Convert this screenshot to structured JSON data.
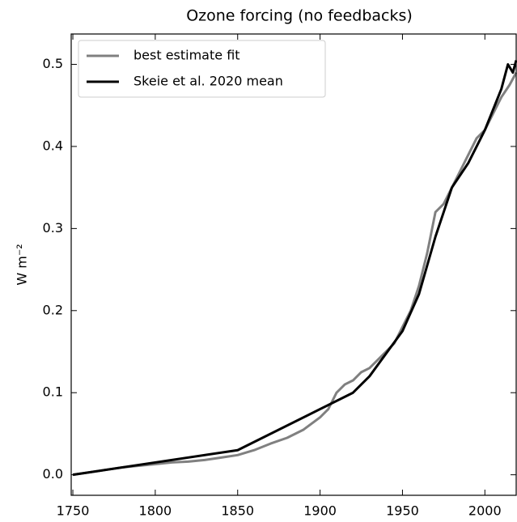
{
  "chart_data": {
    "type": "line",
    "title": "Ozone forcing (no feedbacks)",
    "ylabel": "W m⁻²",
    "xlim": [
      1749,
      2019
    ],
    "ylim": [
      -0.025,
      0.537
    ],
    "xticks": [
      1750,
      1800,
      1850,
      1900,
      1950,
      2000
    ],
    "yticks": [
      {
        "value": 0,
        "label": "0.0"
      },
      {
        "value": 0.1,
        "label": "0.1"
      },
      {
        "value": 0.2,
        "label": "0.2"
      },
      {
        "value": 0.3,
        "label": "0.3"
      },
      {
        "value": 0.4,
        "label": "0.4"
      },
      {
        "value": 0.5,
        "label": "0.5"
      }
    ],
    "legend": "upper left",
    "series": [
      {
        "name": "best estimate fit",
        "color": "#808080",
        "x": [
          1750,
          1760,
          1770,
          1780,
          1790,
          1800,
          1810,
          1820,
          1830,
          1840,
          1850,
          1860,
          1870,
          1880,
          1890,
          1900,
          1905,
          1910,
          1915,
          1920,
          1925,
          1930,
          1935,
          1940,
          1945,
          1950,
          1955,
          1960,
          1965,
          1970,
          1975,
          1980,
          1985,
          1990,
          1995,
          2000,
          2005,
          2010,
          2015,
          2019
        ],
        "values": [
          0,
          0.003,
          0.006,
          0.009,
          0.011,
          0.013,
          0.015,
          0.016,
          0.018,
          0.021,
          0.024,
          0.03,
          0.038,
          0.045,
          0.055,
          0.07,
          0.08,
          0.1,
          0.11,
          0.115,
          0.125,
          0.13,
          0.14,
          0.15,
          0.16,
          0.18,
          0.2,
          0.23,
          0.27,
          0.32,
          0.33,
          0.35,
          0.37,
          0.39,
          0.41,
          0.42,
          0.44,
          0.46,
          0.475,
          0.49
        ]
      },
      {
        "name": "Skeie et al. 2020 mean",
        "color": "#000000",
        "x": [
          1750,
          1850,
          1920,
          1930,
          1950,
          1960,
          1970,
          1980,
          1990,
          2000,
          2010,
          2014,
          2017,
          2019
        ],
        "values": [
          0,
          0.03,
          0.1,
          0.12,
          0.175,
          0.22,
          0.29,
          0.35,
          0.38,
          0.42,
          0.47,
          0.5,
          0.49,
          0.505
        ]
      }
    ]
  }
}
